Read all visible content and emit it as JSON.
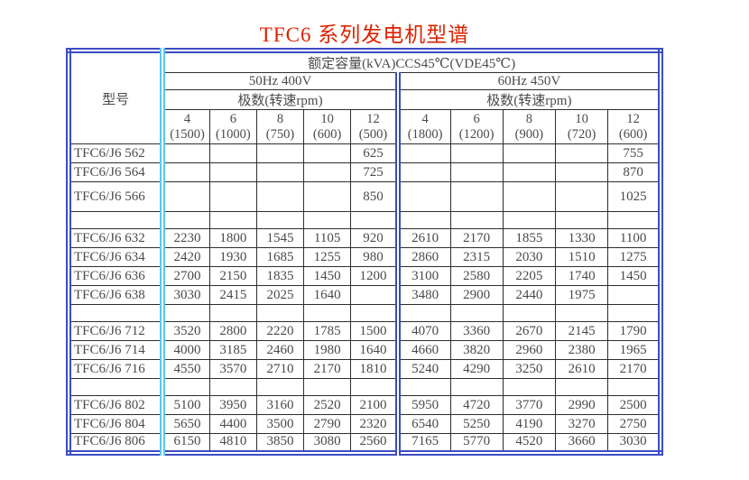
{
  "title": "TFC6 系列发电机型谱",
  "colors": {
    "title_red": "#dd2200",
    "border_blue": "#3c4cc2",
    "divider_cyan": "#5ac8f0",
    "grid_line": "#2e2e2e",
    "text": "#4a4a4a"
  },
  "table": {
    "model_header": "型号",
    "capacity_header": "额定容量(kVA)CCS45℃(VDE45℃)",
    "sections": [
      {
        "label": "50Hz 400V",
        "poles_label": "极数(转速rpm)",
        "columns": [
          {
            "poles": "4",
            "rpm": "(1500)"
          },
          {
            "poles": "6",
            "rpm": "(1000)"
          },
          {
            "poles": "8",
            "rpm": "(750)"
          },
          {
            "poles": "10",
            "rpm": "(600)"
          },
          {
            "poles": "12",
            "rpm": "(500)"
          }
        ]
      },
      {
        "label": "60Hz 450V",
        "poles_label": "极数(转速rpm)",
        "columns": [
          {
            "poles": "4",
            "rpm": "(1800)"
          },
          {
            "poles": "6",
            "rpm": "(1200)"
          },
          {
            "poles": "8",
            "rpm": "(900)"
          },
          {
            "poles": "10",
            "rpm": "(720)"
          },
          {
            "poles": "12",
            "rpm": "(600)"
          }
        ]
      }
    ],
    "rows": [
      {
        "model": "TFC6/J6 562",
        "values": [
          "",
          "",
          "",
          "",
          "625",
          "",
          "",
          "",
          "",
          "755"
        ]
      },
      {
        "model": "TFC6/J6 564",
        "values": [
          "",
          "",
          "",
          "",
          "725",
          "",
          "",
          "",
          "",
          "870"
        ]
      },
      {
        "model": "TFC6/J6 566",
        "values": [
          "",
          "",
          "",
          "",
          "850",
          "",
          "",
          "",
          "",
          "1025"
        ]
      },
      {
        "model": "",
        "values": [
          "",
          "",
          "",
          "",
          "",
          "",
          "",
          "",
          "",
          ""
        ]
      },
      {
        "model": "TFC6/J6 632",
        "values": [
          "2230",
          "1800",
          "1545",
          "1105",
          "920",
          "2610",
          "2170",
          "1855",
          "1330",
          "1100"
        ]
      },
      {
        "model": "TFC6/J6 634",
        "values": [
          "2420",
          "1930",
          "1685",
          "1255",
          "980",
          "2860",
          "2315",
          "2030",
          "1510",
          "1275"
        ]
      },
      {
        "model": "TFC6/J6 636",
        "values": [
          "2700",
          "2150",
          "1835",
          "1450",
          "1200",
          "3100",
          "2580",
          "2205",
          "1740",
          "1450"
        ]
      },
      {
        "model": "TFC6/J6 638",
        "values": [
          "3030",
          "2415",
          "2025",
          "1640",
          "",
          "3480",
          "2900",
          "2440",
          "1975",
          ""
        ]
      },
      {
        "model": "",
        "values": [
          "",
          "",
          "",
          "",
          "",
          "",
          "",
          "",
          "",
          ""
        ]
      },
      {
        "model": "TFC6/J6 712",
        "values": [
          "3520",
          "2800",
          "2220",
          "1785",
          "1500",
          "4070",
          "3360",
          "2670",
          "2145",
          "1790"
        ]
      },
      {
        "model": "TFC6/J6 714",
        "values": [
          "4000",
          "3185",
          "2460",
          "1980",
          "1640",
          "4660",
          "3820",
          "2960",
          "2380",
          "1965"
        ]
      },
      {
        "model": "TFC6/J6 716",
        "values": [
          "4550",
          "3570",
          "2710",
          "2170",
          "1810",
          "5240",
          "4290",
          "3250",
          "2610",
          "2170"
        ]
      },
      {
        "model": "",
        "values": [
          "",
          "",
          "",
          "",
          "",
          "",
          "",
          "",
          "",
          ""
        ]
      },
      {
        "model": "TFC6/J6 802",
        "values": [
          "5100",
          "3950",
          "3160",
          "2520",
          "2100",
          "5950",
          "4720",
          "3770",
          "2990",
          "2500"
        ]
      },
      {
        "model": "TFC6/J6 804",
        "values": [
          "5650",
          "4400",
          "3500",
          "2790",
          "2320",
          "6540",
          "5250",
          "4190",
          "3270",
          "2750"
        ]
      },
      {
        "model": "TFC6/J6 806",
        "values": [
          "6150",
          "4810",
          "3850",
          "3080",
          "2560",
          "7165",
          "5770",
          "4520",
          "3660",
          "3030"
        ]
      }
    ]
  }
}
